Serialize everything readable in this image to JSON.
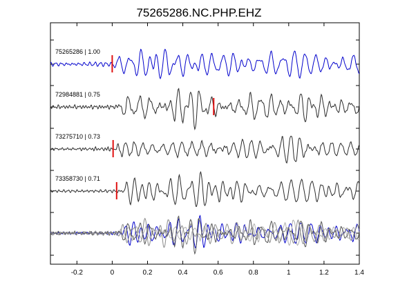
{
  "chart_data": {
    "type": "line",
    "title": "75265286.NC.PHP.EHZ",
    "xlabel": "",
    "ylabel": "",
    "xlim": [
      -0.35,
      1.4
    ],
    "xticks": [
      "-0.2",
      "0",
      "0.2",
      "0.4",
      "0.6",
      "0.8",
      "1",
      "1.2",
      "1.4"
    ],
    "xtick_values": [
      -0.2,
      0,
      0.2,
      0.4,
      0.6,
      0.8,
      1.0,
      1.2,
      1.4
    ],
    "grid": false,
    "legend": "none",
    "colors": {
      "reference": "#0000cc",
      "match": "#2a2a2a",
      "pick": "#e01010",
      "stack_gray": "#8a8a8a"
    },
    "series": [
      {
        "name": "75265286 | 1.00",
        "color": "#0000cc",
        "pick_time": 0.0,
        "seed": 11,
        "amplitude": 1.0
      },
      {
        "name": "72984881 | 0.75",
        "color": "#2a2a2a",
        "pick_time": 0.575,
        "seed": 29,
        "amplitude": 0.85
      },
      {
        "name": "73275710 | 0.73",
        "color": "#2a2a2a",
        "pick_time": 0.005,
        "seed": 47,
        "amplitude": 0.85
      },
      {
        "name": "73358730 | 0.71",
        "color": "#2a2a2a",
        "pick_time": 0.025,
        "seed": 83,
        "amplitude": 0.85
      }
    ],
    "stack": {
      "name": "overlay",
      "onset_time": 0.02
    }
  }
}
